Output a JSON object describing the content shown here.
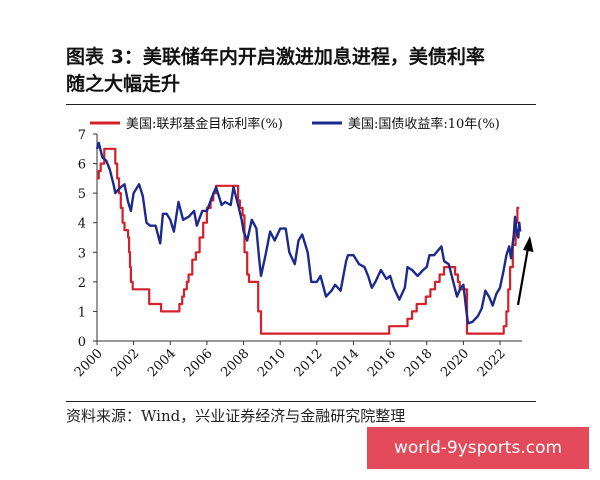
{
  "title": {
    "line1": "图表 3：美联储年内开启激进加息进程，美债利率",
    "line2": "随之大幅走升"
  },
  "source": "资料来源：Wind，兴业证券经济与金融研究院整理",
  "watermark": "world-9ysports.com",
  "colors": {
    "fed_funds": "#d4202a",
    "treasury_10y": "#1c2a8c",
    "arrow": "#000000"
  },
  "chart_data": {
    "type": "line",
    "title": "",
    "xlabel": "",
    "ylabel": "",
    "xlim": [
      2000,
      2023.2
    ],
    "ylim": [
      0,
      7
    ],
    "xticks": [
      "2000",
      "2002",
      "2004",
      "2006",
      "2008",
      "2010",
      "2012",
      "2014",
      "2016",
      "2018",
      "2020",
      "2022"
    ],
    "yticks": [
      "0",
      "1",
      "2",
      "3",
      "4",
      "5",
      "6",
      "7"
    ],
    "legend_position": "top",
    "annotation": "upward-arrow",
    "series": [
      {
        "name": "美国:联邦基金目标利率(%)",
        "color": "#d4202a",
        "step": true,
        "points": [
          [
            2000.0,
            5.5
          ],
          [
            2000.1,
            5.75
          ],
          [
            2000.2,
            6.0
          ],
          [
            2000.4,
            6.5
          ],
          [
            2001.0,
            6.0
          ],
          [
            2001.1,
            5.5
          ],
          [
            2001.2,
            5.0
          ],
          [
            2001.3,
            4.5
          ],
          [
            2001.4,
            4.0
          ],
          [
            2001.5,
            3.75
          ],
          [
            2001.7,
            3.5
          ],
          [
            2001.75,
            3.0
          ],
          [
            2001.8,
            2.5
          ],
          [
            2001.85,
            2.0
          ],
          [
            2001.95,
            1.75
          ],
          [
            2002.85,
            1.25
          ],
          [
            2003.5,
            1.0
          ],
          [
            2004.5,
            1.25
          ],
          [
            2004.65,
            1.5
          ],
          [
            2004.75,
            1.75
          ],
          [
            2004.9,
            2.0
          ],
          [
            2005.0,
            2.25
          ],
          [
            2005.2,
            2.75
          ],
          [
            2005.4,
            3.0
          ],
          [
            2005.6,
            3.5
          ],
          [
            2005.8,
            4.0
          ],
          [
            2006.0,
            4.5
          ],
          [
            2006.2,
            4.75
          ],
          [
            2006.35,
            5.0
          ],
          [
            2006.5,
            5.25
          ],
          [
            2007.7,
            4.75
          ],
          [
            2007.8,
            4.5
          ],
          [
            2007.95,
            4.25
          ],
          [
            2008.05,
            3.0
          ],
          [
            2008.2,
            2.25
          ],
          [
            2008.3,
            2.0
          ],
          [
            2008.8,
            1.0
          ],
          [
            2008.95,
            0.25
          ],
          [
            2015.95,
            0.5
          ],
          [
            2016.95,
            0.75
          ],
          [
            2017.2,
            1.0
          ],
          [
            2017.45,
            1.25
          ],
          [
            2017.95,
            1.5
          ],
          [
            2018.2,
            1.75
          ],
          [
            2018.45,
            2.0
          ],
          [
            2018.7,
            2.25
          ],
          [
            2018.95,
            2.5
          ],
          [
            2019.55,
            2.25
          ],
          [
            2019.7,
            2.0
          ],
          [
            2019.8,
            1.75
          ],
          [
            2020.2,
            0.25
          ],
          [
            2022.2,
            0.5
          ],
          [
            2022.35,
            1.0
          ],
          [
            2022.45,
            1.75
          ],
          [
            2022.55,
            2.5
          ],
          [
            2022.7,
            3.25
          ],
          [
            2022.85,
            4.0
          ],
          [
            2022.95,
            4.5
          ],
          [
            2023.05,
            4.5
          ]
        ]
      },
      {
        "name": "美国:国债收益率:10年(%)",
        "color": "#1c2a8c",
        "step": false,
        "points": [
          [
            2000.0,
            6.5
          ],
          [
            2000.1,
            6.7
          ],
          [
            2000.3,
            6.2
          ],
          [
            2000.5,
            6.1
          ],
          [
            2000.7,
            5.8
          ],
          [
            2000.9,
            5.3
          ],
          [
            2001.0,
            5.0
          ],
          [
            2001.3,
            5.2
          ],
          [
            2001.5,
            5.3
          ],
          [
            2001.7,
            4.7
          ],
          [
            2001.85,
            4.4
          ],
          [
            2002.0,
            5.0
          ],
          [
            2002.3,
            5.3
          ],
          [
            2002.5,
            4.9
          ],
          [
            2002.7,
            4.0
          ],
          [
            2002.9,
            3.9
          ],
          [
            2003.2,
            3.9
          ],
          [
            2003.45,
            3.3
          ],
          [
            2003.6,
            4.3
          ],
          [
            2003.8,
            4.3
          ],
          [
            2004.0,
            4.1
          ],
          [
            2004.2,
            3.7
          ],
          [
            2004.45,
            4.7
          ],
          [
            2004.7,
            4.1
          ],
          [
            2005.0,
            4.2
          ],
          [
            2005.3,
            4.4
          ],
          [
            2005.45,
            3.9
          ],
          [
            2005.75,
            4.4
          ],
          [
            2006.0,
            4.4
          ],
          [
            2006.3,
            4.9
          ],
          [
            2006.5,
            5.2
          ],
          [
            2006.8,
            4.6
          ],
          [
            2007.0,
            4.7
          ],
          [
            2007.3,
            4.6
          ],
          [
            2007.45,
            5.2
          ],
          [
            2007.7,
            4.6
          ],
          [
            2007.9,
            4.1
          ],
          [
            2008.0,
            3.7
          ],
          [
            2008.2,
            3.4
          ],
          [
            2008.45,
            4.1
          ],
          [
            2008.7,
            3.8
          ],
          [
            2008.85,
            2.8
          ],
          [
            2008.95,
            2.2
          ],
          [
            2009.2,
            2.9
          ],
          [
            2009.45,
            3.7
          ],
          [
            2009.7,
            3.4
          ],
          [
            2010.0,
            3.8
          ],
          [
            2010.3,
            3.8
          ],
          [
            2010.5,
            3.0
          ],
          [
            2010.8,
            2.6
          ],
          [
            2011.0,
            3.4
          ],
          [
            2011.2,
            3.6
          ],
          [
            2011.5,
            3.0
          ],
          [
            2011.7,
            2.0
          ],
          [
            2012.0,
            2.0
          ],
          [
            2012.2,
            2.2
          ],
          [
            2012.5,
            1.5
          ],
          [
            2012.8,
            1.7
          ],
          [
            2013.0,
            1.9
          ],
          [
            2013.3,
            1.7
          ],
          [
            2013.6,
            2.7
          ],
          [
            2013.7,
            2.9
          ],
          [
            2014.0,
            2.9
          ],
          [
            2014.3,
            2.6
          ],
          [
            2014.6,
            2.5
          ],
          [
            2014.8,
            2.2
          ],
          [
            2015.0,
            1.8
          ],
          [
            2015.2,
            2.0
          ],
          [
            2015.5,
            2.4
          ],
          [
            2015.8,
            2.1
          ],
          [
            2016.0,
            2.2
          ],
          [
            2016.2,
            1.8
          ],
          [
            2016.5,
            1.4
          ],
          [
            2016.8,
            1.8
          ],
          [
            2016.95,
            2.5
          ],
          [
            2017.2,
            2.4
          ],
          [
            2017.5,
            2.2
          ],
          [
            2017.8,
            2.4
          ],
          [
            2018.0,
            2.5
          ],
          [
            2018.15,
            2.9
          ],
          [
            2018.4,
            2.9
          ],
          [
            2018.8,
            3.2
          ],
          [
            2018.95,
            2.7
          ],
          [
            2019.2,
            2.6
          ],
          [
            2019.45,
            2.0
          ],
          [
            2019.65,
            1.5
          ],
          [
            2019.85,
            1.8
          ],
          [
            2020.0,
            1.9
          ],
          [
            2020.15,
            1.1
          ],
          [
            2020.25,
            0.6
          ],
          [
            2020.5,
            0.65
          ],
          [
            2020.8,
            0.85
          ],
          [
            2021.0,
            1.1
          ],
          [
            2021.2,
            1.7
          ],
          [
            2021.4,
            1.5
          ],
          [
            2021.6,
            1.2
          ],
          [
            2021.8,
            1.6
          ],
          [
            2022.0,
            1.8
          ],
          [
            2022.2,
            2.4
          ],
          [
            2022.35,
            2.9
          ],
          [
            2022.5,
            3.2
          ],
          [
            2022.6,
            2.8
          ],
          [
            2022.75,
            3.6
          ],
          [
            2022.82,
            4.2
          ],
          [
            2022.9,
            3.7
          ],
          [
            2023.0,
            3.5
          ],
          [
            2023.05,
            4.0
          ],
          [
            2023.1,
            3.7
          ]
        ]
      }
    ]
  }
}
